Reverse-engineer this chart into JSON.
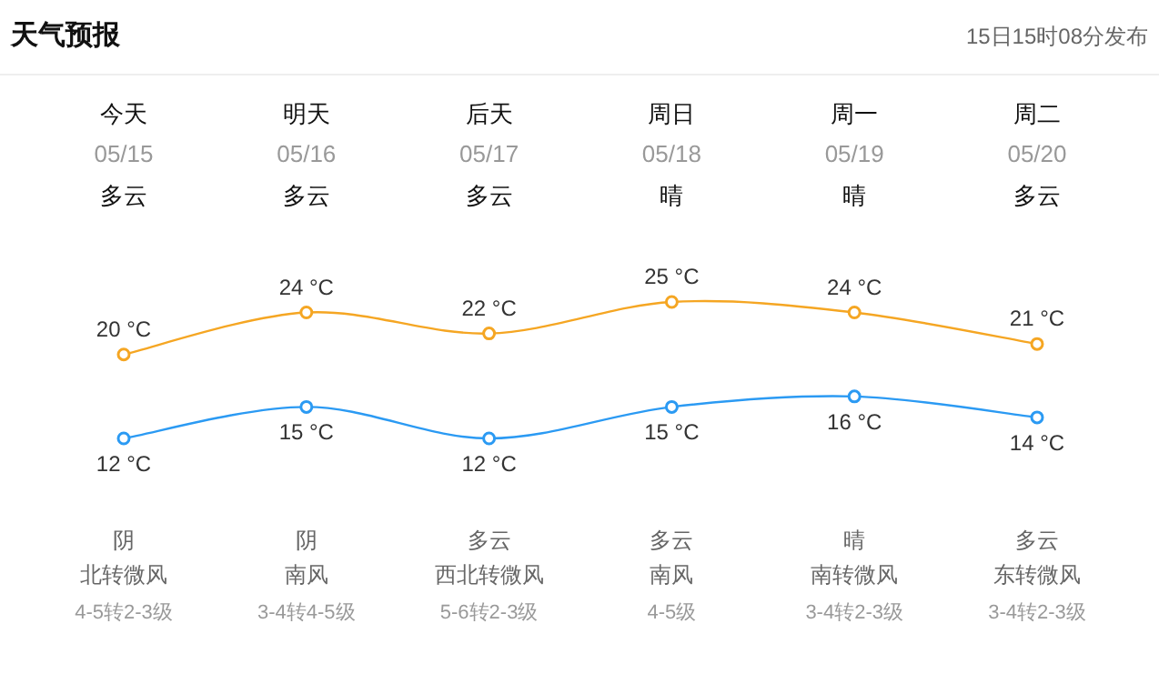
{
  "chart_data": {
    "type": "line",
    "title": "天气预报",
    "categories": [
      "今天",
      "明天",
      "后天",
      "周日",
      "周一",
      "周二"
    ],
    "series": [
      {
        "color": "#f5a623",
        "values": [
          20,
          24,
          22,
          25,
          24,
          21
        ],
        "value_labels": [
          "20 °C",
          "24 °C",
          "22 °C",
          "25 °C",
          "24 °C",
          "21 °C"
        ]
      },
      {
        "color": "#2b9af3",
        "values": [
          12,
          15,
          12,
          15,
          16,
          14
        ],
        "value_labels": [
          "12 °C",
          "15 °C",
          "12 °C",
          "15 °C",
          "16 °C",
          "14 °C"
        ]
      }
    ],
    "marker": "circle",
    "annotations": [
      "15日15时08分发布",
      "05/15",
      "多云",
      "阴",
      "北转微风",
      "4-5转2-3级",
      "05/16",
      "多云",
      "阴",
      "南风",
      "3-4转4-5级",
      "05/17",
      "多云",
      "多云",
      "西北转微风",
      "5-6转2-3级",
      "05/18",
      "晴",
      "多云",
      "南风",
      "4-5级",
      "05/19",
      "晴",
      "晴",
      "南转微风",
      "3-4转2-3级",
      "05/20",
      "多云",
      "多云",
      "东转微风",
      "3-4转2-3级"
    ]
  }
}
